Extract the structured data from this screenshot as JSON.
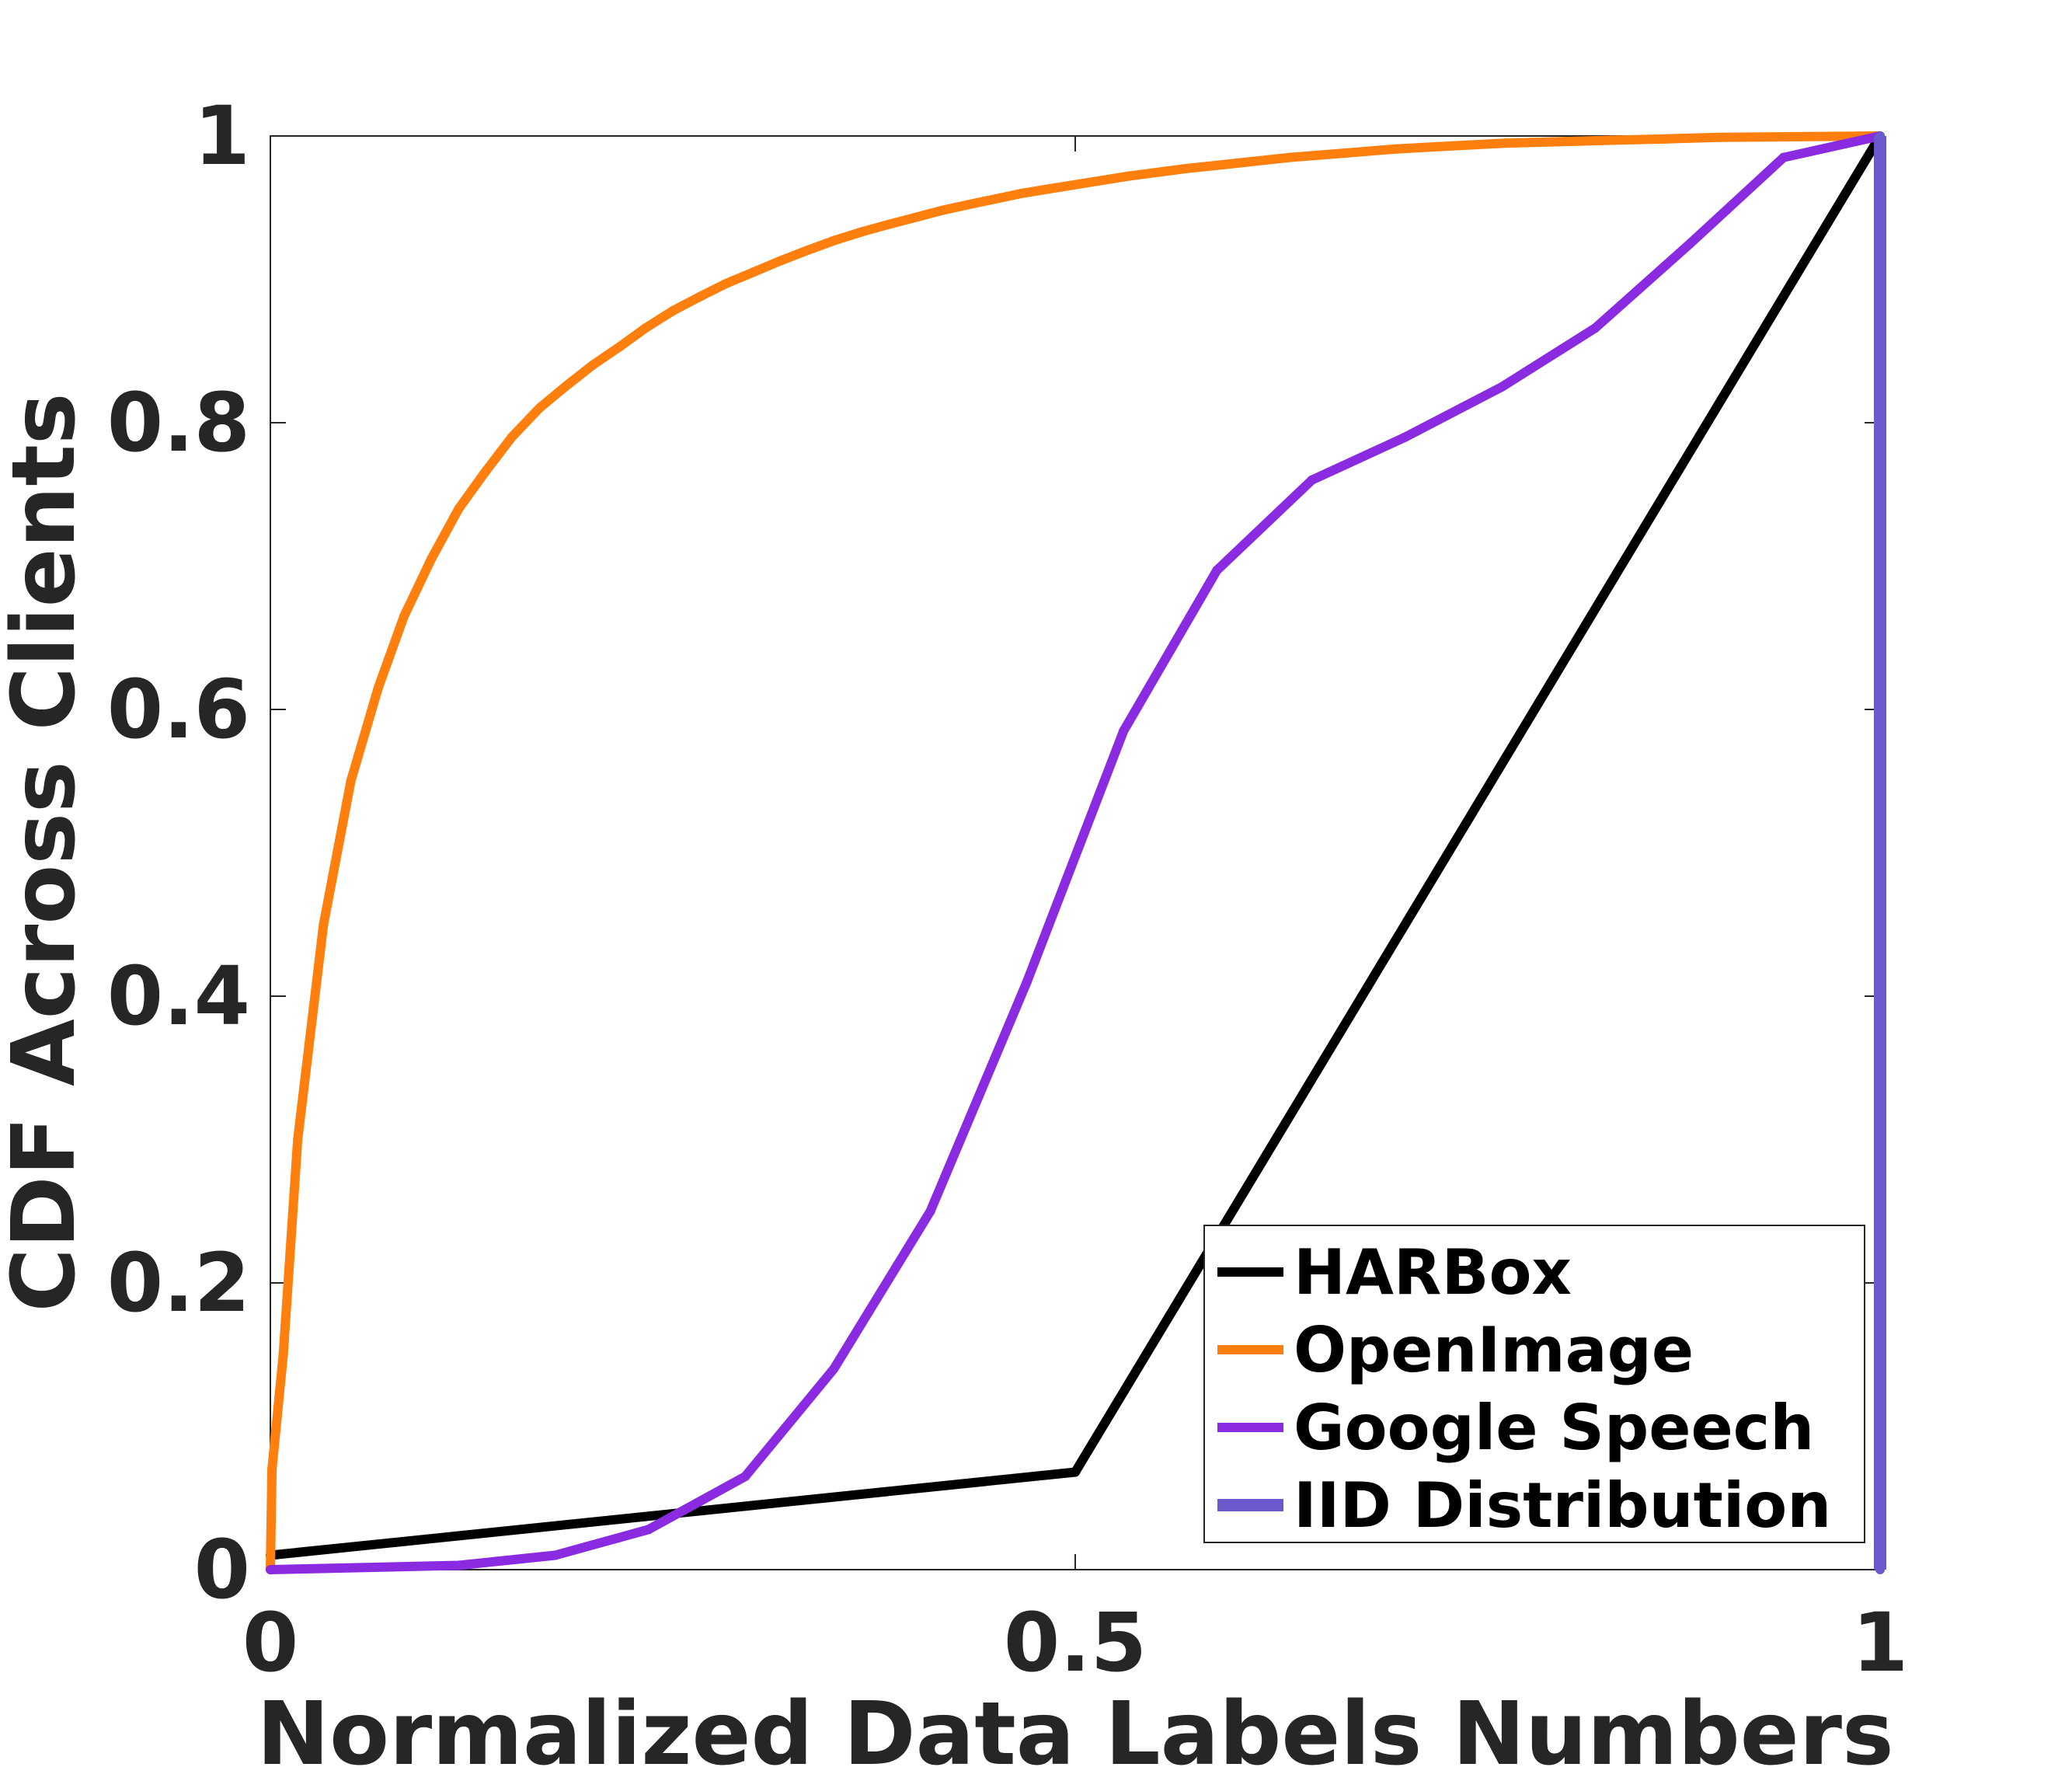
{
  "chart_data": {
    "type": "line",
    "title": "",
    "xlabel": "Normalized Data Labels Numbers",
    "ylabel": "CDF Across Clients",
    "xlim": [
      0,
      1
    ],
    "ylim": [
      0,
      1
    ],
    "x_ticks": [
      {
        "value": 0,
        "label": "0"
      },
      {
        "value": 0.5,
        "label": "0.5"
      },
      {
        "value": 1,
        "label": "1"
      }
    ],
    "y_ticks": [
      {
        "value": 0,
        "label": "0"
      },
      {
        "value": 0.2,
        "label": "0.2"
      },
      {
        "value": 0.4,
        "label": "0.4"
      },
      {
        "value": 0.6,
        "label": "0.6"
      },
      {
        "value": 0.8,
        "label": "0.8"
      },
      {
        "value": 1,
        "label": "1"
      }
    ],
    "grid": false,
    "legend_position": "bottom-right",
    "series": [
      {
        "name": "HARBox",
        "color": "#000000",
        "points": [
          [
            0,
            0.01
          ],
          [
            0.5,
            0.068
          ],
          [
            1,
            1
          ]
        ]
      },
      {
        "name": "OpenImage",
        "color": "#ff7f0e",
        "points": [
          [
            0,
            0
          ],
          [
            0.001,
            0.07
          ],
          [
            0.008,
            0.15
          ],
          [
            0.017,
            0.3
          ],
          [
            0.033,
            0.45
          ],
          [
            0.05,
            0.55
          ],
          [
            0.067,
            0.615
          ],
          [
            0.083,
            0.665
          ],
          [
            0.1,
            0.705
          ],
          [
            0.117,
            0.74
          ],
          [
            0.133,
            0.765
          ],
          [
            0.15,
            0.79
          ],
          [
            0.167,
            0.81
          ],
          [
            0.183,
            0.825
          ],
          [
            0.2,
            0.84
          ],
          [
            0.217,
            0.853
          ],
          [
            0.233,
            0.866
          ],
          [
            0.25,
            0.878
          ],
          [
            0.267,
            0.888
          ],
          [
            0.283,
            0.897
          ],
          [
            0.3,
            0.905
          ],
          [
            0.317,
            0.913
          ],
          [
            0.333,
            0.92
          ],
          [
            0.35,
            0.927
          ],
          [
            0.367,
            0.933
          ],
          [
            0.383,
            0.938
          ],
          [
            0.4,
            0.943
          ],
          [
            0.417,
            0.948
          ],
          [
            0.433,
            0.952
          ],
          [
            0.45,
            0.956
          ],
          [
            0.467,
            0.96
          ],
          [
            0.483,
            0.963
          ],
          [
            0.5,
            0.966
          ],
          [
            0.533,
            0.972
          ],
          [
            0.567,
            0.977
          ],
          [
            0.6,
            0.981
          ],
          [
            0.633,
            0.985
          ],
          [
            0.667,
            0.988
          ],
          [
            0.7,
            0.991
          ],
          [
            0.733,
            0.993
          ],
          [
            0.767,
            0.995
          ],
          [
            0.8,
            0.996
          ],
          [
            0.833,
            0.997
          ],
          [
            0.867,
            0.998
          ],
          [
            0.9,
            0.999
          ],
          [
            0.95,
            0.9995
          ],
          [
            1,
            1
          ]
        ]
      },
      {
        "name": "Google Speech",
        "color": "#8a2be2",
        "points": [
          [
            0,
            0
          ],
          [
            0.117,
            0.003
          ],
          [
            0.177,
            0.01
          ],
          [
            0.235,
            0.028
          ],
          [
            0.295,
            0.065
          ],
          [
            0.35,
            0.14
          ],
          [
            0.41,
            0.25
          ],
          [
            0.47,
            0.41
          ],
          [
            0.53,
            0.585
          ],
          [
            0.588,
            0.697
          ],
          [
            0.647,
            0.76
          ],
          [
            0.705,
            0.79
          ],
          [
            0.765,
            0.825
          ],
          [
            0.823,
            0.866
          ],
          [
            0.882,
            0.925
          ],
          [
            0.94,
            0.985
          ],
          [
            1,
            1
          ]
        ]
      },
      {
        "name": "IID Distribution",
        "color": "#6a5acd",
        "points": [
          [
            1,
            0
          ],
          [
            1,
            1
          ]
        ]
      }
    ]
  }
}
